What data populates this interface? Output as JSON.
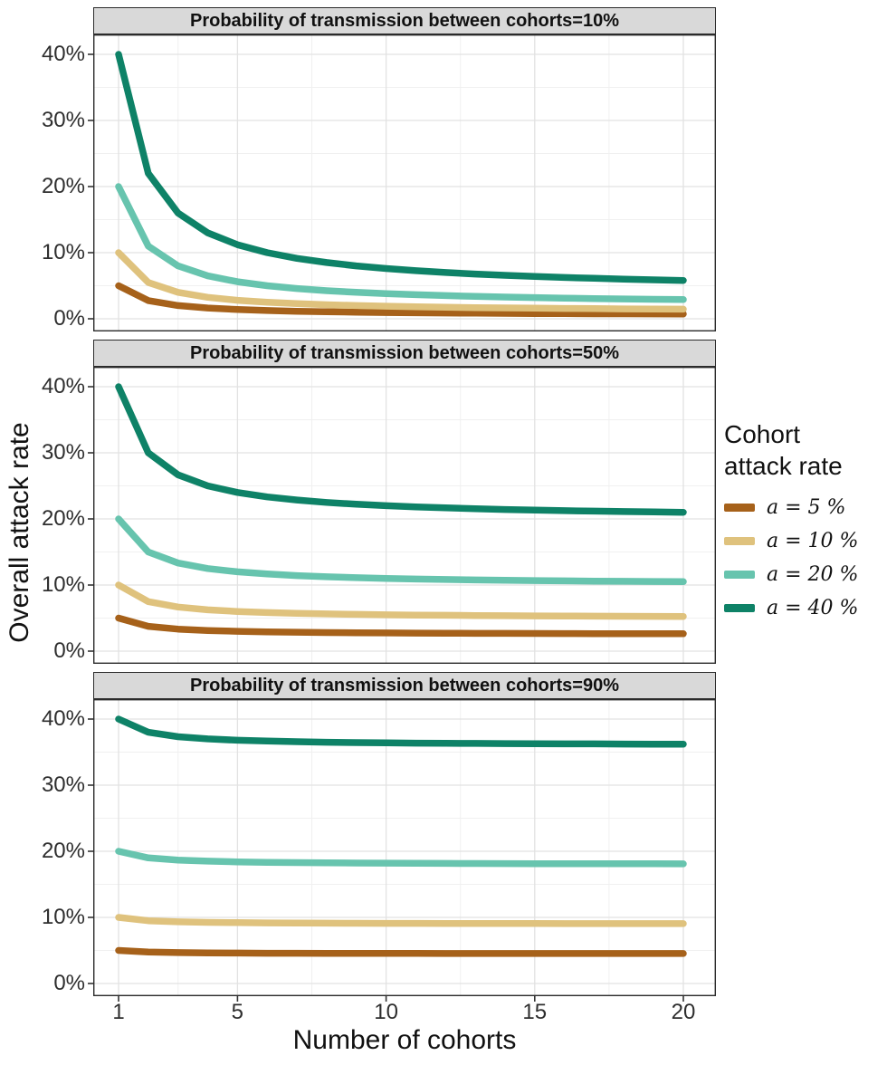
{
  "figure": {
    "y_axis_title": "Overall attack rate",
    "x_axis_title": "Number of cohorts",
    "y_tick_values": [
      0,
      10,
      20,
      30,
      40
    ],
    "y_tick_labels": [
      "0%",
      "10%",
      "20%",
      "30%",
      "40%"
    ],
    "x_tick_values": [
      1,
      5,
      10,
      15,
      20
    ],
    "x_tick_labels": [
      "1",
      "5",
      "10",
      "15",
      "20"
    ]
  },
  "legend": {
    "title": "Cohort attack rate",
    "entries": [
      {
        "label": "a = 5 %",
        "color": "#A6611A"
      },
      {
        "label": "a = 10 %",
        "color": "#DFC27D"
      },
      {
        "label": "a = 20 %",
        "color": "#67C4AE"
      },
      {
        "label": "a = 40 %",
        "color": "#0E8267"
      }
    ]
  },
  "chart_data": {
    "type": "line",
    "xlabel": "Number of cohorts",
    "ylabel": "Overall attack rate",
    "legend_title": "Cohort attack rate",
    "xlim": [
      1,
      20
    ],
    "ylim": [
      0,
      40
    ],
    "x_ticks": [
      1,
      5,
      10,
      15,
      20
    ],
    "y_ticks": [
      0,
      10,
      20,
      30,
      40
    ],
    "x_minor": [
      3,
      7.5,
      12.5,
      17.5
    ],
    "y_minor": [
      5,
      15,
      25,
      35
    ],
    "x": [
      1,
      2,
      3,
      4,
      5,
      6,
      7,
      8,
      9,
      10,
      11,
      12,
      13,
      14,
      15,
      16,
      17,
      18,
      19,
      20
    ],
    "series_colors": [
      "#A6611A",
      "#DFC27D",
      "#67C4AE",
      "#0E8267"
    ],
    "facets": [
      {
        "title": "Probability of transmission between cohorts=10%",
        "between_cohort_transmission_probability": 0.1,
        "series": [
          {
            "name": "a = 5 %",
            "values": [
              5,
              2.75,
              2,
              1.63,
              1.4,
              1.25,
              1.14,
              1.06,
              1,
              0.95,
              0.91,
              0.88,
              0.85,
              0.82,
              0.8,
              0.78,
              0.76,
              0.75,
              0.74,
              0.73
            ]
          },
          {
            "name": "a = 10 %",
            "values": [
              10,
              5.5,
              4,
              3.25,
              2.8,
              2.5,
              2.29,
              2.13,
              2,
              1.9,
              1.82,
              1.75,
              1.69,
              1.64,
              1.6,
              1.56,
              1.53,
              1.5,
              1.47,
              1.45
            ]
          },
          {
            "name": "a = 20 %",
            "values": [
              20,
              11,
              8,
              6.5,
              5.6,
              5,
              4.57,
              4.25,
              4,
              3.8,
              3.64,
              3.5,
              3.38,
              3.29,
              3.2,
              3.13,
              3.06,
              3,
              2.95,
              2.9
            ]
          },
          {
            "name": "a = 40 %",
            "values": [
              40,
              22,
              16,
              13,
              11.2,
              10,
              9.14,
              8.5,
              8,
              7.6,
              7.27,
              7,
              6.77,
              6.57,
              6.4,
              6.25,
              6.12,
              6,
              5.89,
              5.8
            ]
          }
        ]
      },
      {
        "title": "Probability of transmission between cohorts=50%",
        "between_cohort_transmission_probability": 0.5,
        "series": [
          {
            "name": "a = 5 %",
            "values": [
              5,
              3.75,
              3.33,
              3.13,
              3,
              2.92,
              2.86,
              2.81,
              2.78,
              2.75,
              2.73,
              2.71,
              2.69,
              2.68,
              2.67,
              2.66,
              2.65,
              2.64,
              2.63,
              2.63
            ]
          },
          {
            "name": "a = 10 %",
            "values": [
              10,
              7.5,
              6.67,
              6.25,
              6,
              5.83,
              5.71,
              5.63,
              5.56,
              5.5,
              5.45,
              5.42,
              5.38,
              5.36,
              5.33,
              5.31,
              5.29,
              5.28,
              5.26,
              5.25
            ]
          },
          {
            "name": "a = 20 %",
            "values": [
              20,
              15,
              13.33,
              12.5,
              12,
              11.67,
              11.43,
              11.25,
              11.11,
              11,
              10.91,
              10.83,
              10.77,
              10.71,
              10.67,
              10.63,
              10.59,
              10.56,
              10.53,
              10.5
            ]
          },
          {
            "name": "a = 40 %",
            "values": [
              40,
              30,
              26.67,
              25,
              24,
              23.33,
              22.86,
              22.5,
              22.22,
              22,
              21.82,
              21.67,
              21.54,
              21.43,
              21.33,
              21.25,
              21.18,
              21.11,
              21.05,
              21
            ]
          }
        ]
      },
      {
        "title": "Probability of transmission between cohorts=90%",
        "between_cohort_transmission_probability": 0.9,
        "series": [
          {
            "name": "a = 5 %",
            "values": [
              5,
              4.75,
              4.67,
              4.63,
              4.6,
              4.58,
              4.57,
              4.56,
              4.56,
              4.55,
              4.55,
              4.54,
              4.54,
              4.54,
              4.53,
              4.53,
              4.53,
              4.53,
              4.53,
              4.53
            ]
          },
          {
            "name": "a = 10 %",
            "values": [
              10,
              9.5,
              9.33,
              9.25,
              9.2,
              9.17,
              9.14,
              9.13,
              9.11,
              9.1,
              9.09,
              9.08,
              9.08,
              9.07,
              9.07,
              9.06,
              9.06,
              9.06,
              9.05,
              9.05
            ]
          },
          {
            "name": "a = 20 %",
            "values": [
              20,
              19,
              18.67,
              18.5,
              18.4,
              18.33,
              18.29,
              18.25,
              18.22,
              18.2,
              18.18,
              18.17,
              18.15,
              18.14,
              18.13,
              18.13,
              18.12,
              18.11,
              18.11,
              18.1
            ]
          },
          {
            "name": "a = 40 %",
            "values": [
              40,
              38,
              37.33,
              37,
              36.8,
              36.67,
              36.57,
              36.5,
              36.44,
              36.4,
              36.36,
              36.33,
              36.31,
              36.29,
              36.27,
              36.25,
              36.24,
              36.22,
              36.21,
              36.2
            ]
          }
        ]
      }
    ]
  }
}
